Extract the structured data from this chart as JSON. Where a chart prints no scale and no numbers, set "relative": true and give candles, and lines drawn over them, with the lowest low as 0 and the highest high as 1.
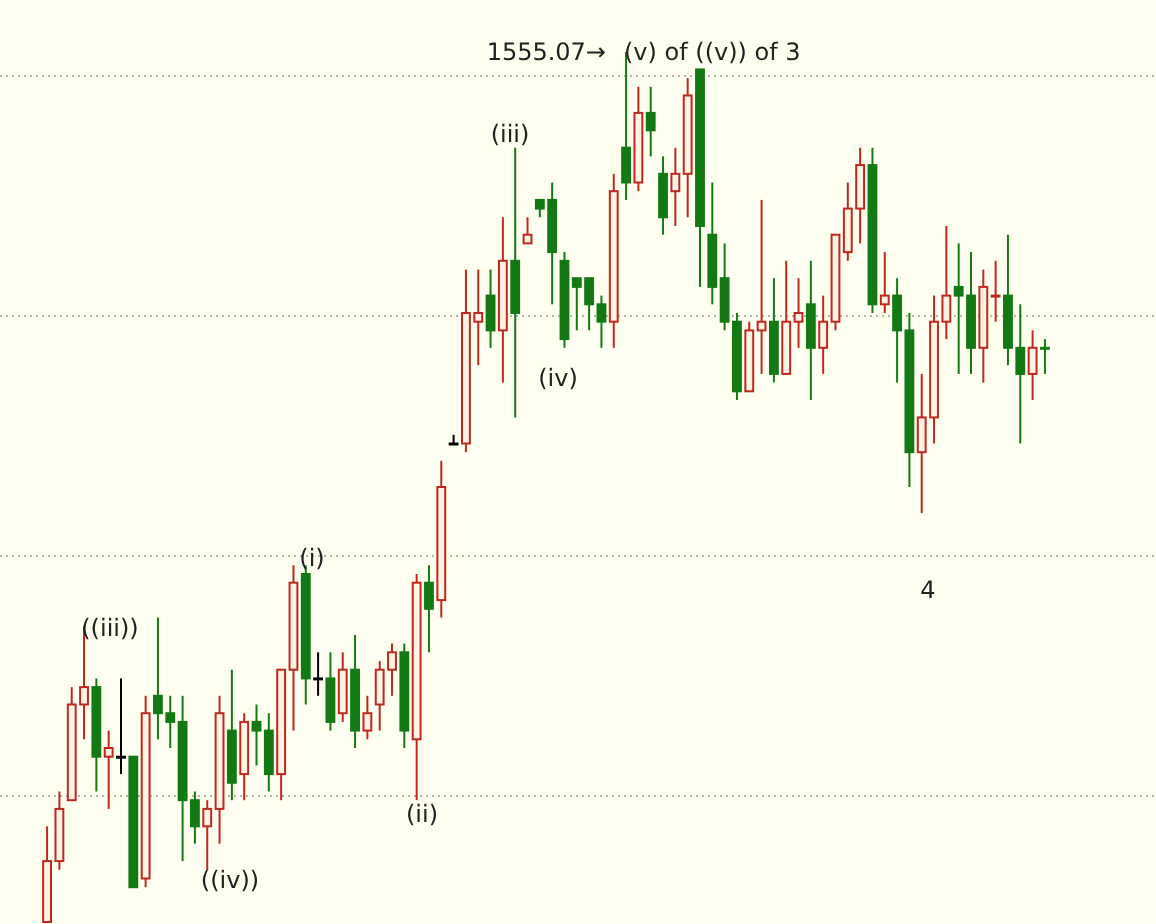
{
  "chart_data": {
    "type": "candlestick",
    "relative": true,
    "grid": "y",
    "colors": [
      "#c0281e",
      "#c0281e",
      "#c0281e",
      "#c0281e",
      "#137a13",
      "#c0281e",
      "#000000",
      "#137a13",
      "#c0281e",
      "#137a13",
      "#137a13",
      "#137a13",
      "#137a13",
      "#c0281e",
      "#c0281e",
      "#137a13",
      "#c0281e",
      "#137a13",
      "#137a13",
      "#c0281e",
      "#c0281e",
      "#137a13",
      "#000000",
      "#137a13",
      "#c0281e",
      "#137a13",
      "#c0281e",
      "#c0281e",
      "#c0281e",
      "#137a13",
      "#c0281e",
      "#137a13",
      "#c0281e",
      "#000000",
      "#c0281e",
      "#c0281e",
      "#137a13",
      "#c0281e",
      "#137a13",
      "#c0281e",
      "#137a13",
      "#137a13",
      "#137a13",
      "#137a13",
      "#137a13",
      "#137a13",
      "#c0281e",
      "#137a13",
      "#c0281e",
      "#137a13",
      "#137a13",
      "#c0281e",
      "#c0281e",
      "#137a13",
      "#137a13",
      "#137a13",
      "#137a13",
      "#c0281e",
      "#c0281e",
      "#137a13",
      "#c0281e",
      "#c0281e",
      "#137a13",
      "#c0281e",
      "#c0281e",
      "#c0281e",
      "#c0281e",
      "#137a13",
      "#c0281e",
      "#137a13",
      "#137a13",
      "#c0281e",
      "#c0281e",
      "#c0281e",
      "#137a13",
      "#137a13",
      "#c0281e",
      "#c0281e",
      "#137a13",
      "#137a13",
      "#c0281e",
      "#137a13"
    ],
    "categories": [
      null,
      null,
      null,
      null,
      null,
      null,
      null,
      null,
      null,
      null,
      null,
      null,
      null,
      null,
      null,
      null,
      null,
      null,
      null,
      null,
      null,
      null,
      null,
      null,
      null,
      null,
      null,
      null,
      null,
      null,
      null,
      null,
      null,
      null,
      null,
      null,
      null,
      null,
      null,
      null,
      null,
      null,
      null,
      null,
      null,
      null,
      null,
      null,
      null,
      null,
      null,
      null,
      null,
      null,
      null,
      null,
      null,
      null,
      null,
      null,
      null,
      null,
      null,
      null,
      null,
      null,
      null,
      null,
      null,
      null,
      null,
      null,
      null,
      null,
      null,
      null,
      null,
      null,
      null,
      null,
      null,
      null
    ],
    "ohlc": [
      [
        0,
        0.11,
        0,
        0.07
      ],
      [
        0.07,
        0.15,
        0.06,
        0.13
      ],
      [
        0.14,
        0.27,
        0.14,
        0.25
      ],
      [
        0.25,
        0.34,
        0.21,
        0.27
      ],
      [
        0.27,
        0.28,
        0.15,
        0.19
      ],
      [
        0.19,
        0.22,
        0.13,
        0.2
      ],
      [
        0.19,
        0.28,
        0.17,
        0.19
      ],
      [
        0.19,
        0.19,
        0.04,
        0.04
      ],
      [
        0.05,
        0.26,
        0.04,
        0.24
      ],
      [
        0.26,
        0.35,
        0.21,
        0.24
      ],
      [
        0.24,
        0.26,
        0.2,
        0.23
      ],
      [
        0.23,
        0.26,
        0.07,
        0.14
      ],
      [
        0.14,
        0.15,
        0.09,
        0.11
      ],
      [
        0.11,
        0.14,
        0.06,
        0.13
      ],
      [
        0.13,
        0.26,
        0.09,
        0.24
      ],
      [
        0.22,
        0.29,
        0.14,
        0.16
      ],
      [
        0.17,
        0.24,
        0.14,
        0.23
      ],
      [
        0.23,
        0.25,
        0.18,
        0.22
      ],
      [
        0.22,
        0.24,
        0.15,
        0.17
      ],
      [
        0.17,
        0.29,
        0.14,
        0.29
      ],
      [
        0.29,
        0.41,
        0.22,
        0.39
      ],
      [
        0.4,
        0.41,
        0.25,
        0.28
      ],
      [
        0.28,
        0.31,
        0.26,
        0.28
      ],
      [
        0.28,
        0.31,
        0.22,
        0.23
      ],
      [
        0.24,
        0.31,
        0.23,
        0.29
      ],
      [
        0.29,
        0.33,
        0.2,
        0.22
      ],
      [
        0.22,
        0.26,
        0.21,
        0.24
      ],
      [
        0.25,
        0.3,
        0.22,
        0.29
      ],
      [
        0.29,
        0.32,
        0.26,
        0.31
      ],
      [
        0.31,
        0.32,
        0.2,
        0.22
      ],
      [
        0.21,
        0.4,
        0.14,
        0.39
      ],
      [
        0.39,
        0.41,
        0.31,
        0.36
      ],
      [
        0.37,
        0.53,
        0.35,
        0.5
      ],
      [
        0.55,
        0.56,
        0.55,
        0.55
      ],
      [
        0.55,
        0.75,
        0.54,
        0.7
      ],
      [
        0.69,
        0.75,
        0.64,
        0.7
      ],
      [
        0.72,
        0.75,
        0.66,
        0.68
      ],
      [
        0.68,
        0.81,
        0.62,
        0.76
      ],
      [
        0.76,
        0.89,
        0.58,
        0.7
      ],
      [
        0.78,
        0.81,
        0.78,
        0.79
      ],
      [
        0.83,
        0.83,
        0.81,
        0.82
      ],
      [
        0.83,
        0.85,
        0.71,
        0.77
      ],
      [
        0.76,
        0.77,
        0.66,
        0.67
      ],
      [
        0.74,
        0.74,
        0.68,
        0.73
      ],
      [
        0.74,
        0.74,
        0.68,
        0.71
      ],
      [
        0.71,
        0.72,
        0.66,
        0.69
      ],
      [
        0.69,
        0.86,
        0.66,
        0.84
      ],
      [
        0.89,
        1,
        0.83,
        0.85
      ],
      [
        0.85,
        0.96,
        0.84,
        0.93
      ],
      [
        0.93,
        0.96,
        0.88,
        0.91
      ],
      [
        0.86,
        0.88,
        0.79,
        0.81
      ],
      [
        0.84,
        0.89,
        0.8,
        0.86
      ],
      [
        0.86,
        0.97,
        0.81,
        0.95
      ],
      [
        0.98,
        0.98,
        0.73,
        0.8
      ],
      [
        0.79,
        0.85,
        0.71,
        0.73
      ],
      [
        0.74,
        0.78,
        0.68,
        0.69
      ],
      [
        0.69,
        0.7,
        0.6,
        0.61
      ],
      [
        0.61,
        0.69,
        0.61,
        0.68
      ],
      [
        0.68,
        0.83,
        0.63,
        0.69
      ],
      [
        0.69,
        0.74,
        0.62,
        0.63
      ],
      [
        0.63,
        0.76,
        0.63,
        0.69
      ],
      [
        0.69,
        0.74,
        0.66,
        0.7
      ],
      [
        0.71,
        0.76,
        0.6,
        0.66
      ],
      [
        0.66,
        0.72,
        0.63,
        0.69
      ],
      [
        0.69,
        0.79,
        0.68,
        0.79
      ],
      [
        0.77,
        0.85,
        0.76,
        0.82
      ],
      [
        0.82,
        0.89,
        0.78,
        0.87
      ],
      [
        0.87,
        0.89,
        0.7,
        0.71
      ],
      [
        0.71,
        0.77,
        0.7,
        0.72
      ],
      [
        0.72,
        0.74,
        0.62,
        0.68
      ],
      [
        0.68,
        0.7,
        0.5,
        0.54
      ],
      [
        0.54,
        0.63,
        0.47,
        0.58
      ],
      [
        0.58,
        0.72,
        0.55,
        0.69
      ],
      [
        0.69,
        0.8,
        0.67,
        0.72
      ],
      [
        0.73,
        0.78,
        0.63,
        0.72
      ],
      [
        0.72,
        0.77,
        0.63,
        0.66
      ],
      [
        0.66,
        0.75,
        0.62,
        0.73
      ],
      [
        0.72,
        0.76,
        0.69,
        0.72
      ],
      [
        0.72,
        0.79,
        0.64,
        0.66
      ],
      [
        0.66,
        0.71,
        0.55,
        0.63
      ],
      [
        0.63,
        0.68,
        0.6,
        0.66
      ],
      [
        0.66,
        0.67,
        0.63,
        0.66
      ]
    ],
    "annotations": [
      "((iii))",
      "(i)",
      "((iv))",
      "(ii)",
      "(iii)",
      "(iv)",
      "1555.07→",
      "(v) of ((v)) of 3",
      "4"
    ]
  }
}
